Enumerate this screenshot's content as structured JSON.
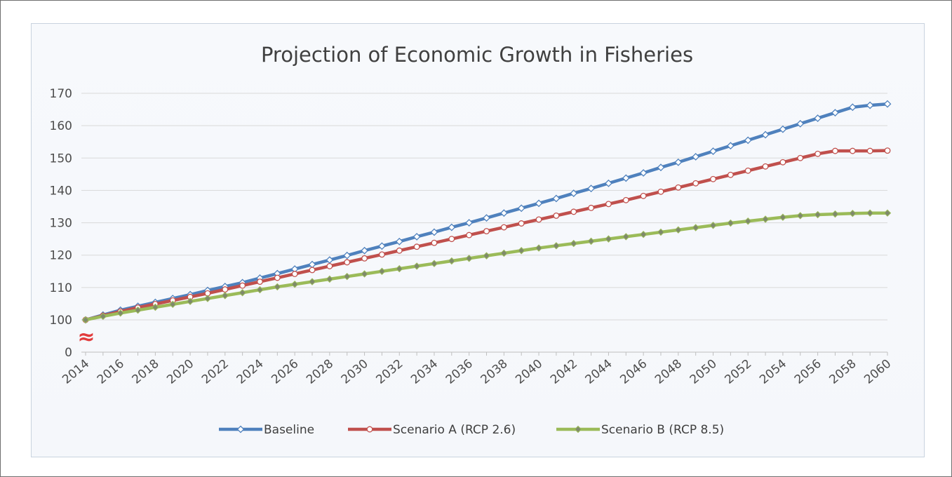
{
  "chart_data": {
    "type": "line",
    "title": "Projection of Economic Growth in Fisheries",
    "xlabel": "",
    "ylabel": "",
    "x": [
      2014,
      2015,
      2016,
      2017,
      2018,
      2019,
      2020,
      2021,
      2022,
      2023,
      2024,
      2025,
      2026,
      2027,
      2028,
      2029,
      2030,
      2031,
      2032,
      2033,
      2034,
      2035,
      2036,
      2037,
      2038,
      2039,
      2040,
      2041,
      2042,
      2043,
      2044,
      2045,
      2046,
      2047,
      2048,
      2049,
      2050,
      2051,
      2052,
      2053,
      2054,
      2055,
      2056,
      2057,
      2058,
      2059,
      2060
    ],
    "x_tick_labels": [
      "2014",
      "2016",
      "2018",
      "2020",
      "2022",
      "2024",
      "2026",
      "2028",
      "2030",
      "2032",
      "2034",
      "2036",
      "2038",
      "2040",
      "2042",
      "2044",
      "2046",
      "2048",
      "2050",
      "2052",
      "2054",
      "2056",
      "2058",
      "2060"
    ],
    "y_tick_labels": [
      "0",
      "100",
      "110",
      "120",
      "130",
      "140",
      "150",
      "160",
      "170"
    ],
    "ylim": [
      100,
      170
    ],
    "axis_break": "≈",
    "grid": true,
    "legend_position": "bottom",
    "series": [
      {
        "name": "Baseline",
        "color": "#4f81bd",
        "marker": "diamond-open",
        "values": [
          100,
          101.5,
          103.0,
          104.2,
          105.4,
          106.6,
          107.8,
          109.1,
          110.3,
          111.5,
          112.9,
          114.3,
          115.7,
          117.1,
          118.5,
          119.9,
          121.4,
          122.8,
          124.2,
          125.7,
          127.1,
          128.6,
          130.0,
          131.5,
          133.0,
          134.5,
          136.0,
          137.5,
          139.1,
          140.6,
          142.2,
          143.8,
          145.4,
          147.1,
          148.7,
          150.4,
          152.1,
          153.8,
          155.5,
          157.2,
          158.9,
          160.6,
          162.3,
          164.0,
          165.7,
          166.3,
          166.7
        ]
      },
      {
        "name": "Scenario A (RCP 2.6)",
        "color": "#c0504d",
        "marker": "circle-open",
        "values": [
          100,
          101.3,
          102.6,
          103.8,
          104.9,
          106.0,
          107.1,
          108.2,
          109.4,
          110.6,
          111.8,
          113.0,
          114.2,
          115.4,
          116.6,
          117.8,
          119.0,
          120.2,
          121.4,
          122.6,
          123.8,
          125.0,
          126.2,
          127.4,
          128.6,
          129.8,
          131.0,
          132.2,
          133.4,
          134.6,
          135.8,
          137.0,
          138.3,
          139.6,
          140.9,
          142.2,
          143.5,
          144.8,
          146.1,
          147.4,
          148.7,
          150.0,
          151.3,
          152.2,
          152.2,
          152.2,
          152.3
        ]
      },
      {
        "name": "Scenario B (RCP 8.5)",
        "color": "#9bbb59",
        "marker": "diamond-filled",
        "values": [
          100,
          101.1,
          102.1,
          103.0,
          103.9,
          104.8,
          105.7,
          106.6,
          107.5,
          108.4,
          109.3,
          110.2,
          111.0,
          111.8,
          112.6,
          113.4,
          114.2,
          115.0,
          115.8,
          116.6,
          117.4,
          118.2,
          119.0,
          119.8,
          120.6,
          121.4,
          122.2,
          122.9,
          123.6,
          124.3,
          125.0,
          125.7,
          126.4,
          127.1,
          127.8,
          128.5,
          129.2,
          129.9,
          130.5,
          131.1,
          131.7,
          132.2,
          132.5,
          132.7,
          132.9,
          133.0,
          133.0
        ]
      }
    ]
  }
}
